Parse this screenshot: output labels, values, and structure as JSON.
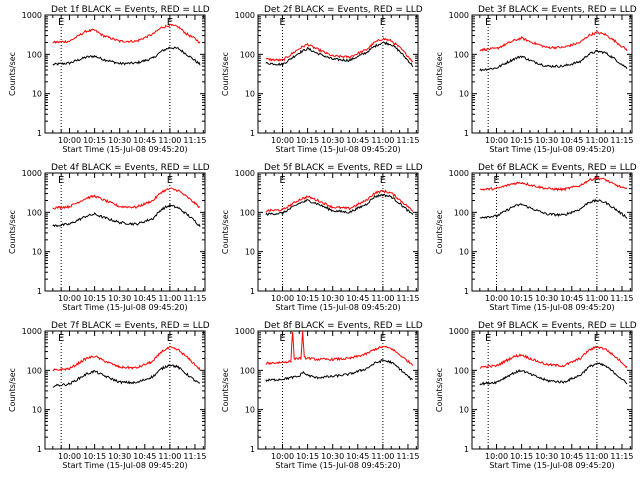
{
  "figure": {
    "colors": {
      "events": "#000000",
      "lld": "#ff0000",
      "background": "#ffffff"
    }
  },
  "chart_data": [
    {
      "type": "line",
      "title": "Det 1f BLACK = Events, RED = LLD",
      "xlabel": "Start Time (15-Jul-08 09:45:20)",
      "ylabel": "Counts/sec",
      "x_ticks": [
        "10:00",
        "10:15",
        "10:30",
        "10:45",
        "11:00",
        "11:15"
      ],
      "y_ticks": [
        "1",
        "10",
        "100",
        "1000"
      ],
      "ylim": [
        1,
        1000
      ],
      "y_scale": "log",
      "markers": [
        "E",
        "E"
      ],
      "marker_times": [
        "09:55",
        "11:00"
      ],
      "series": [
        {
          "name": "Events",
          "color": "#000000",
          "x": [
            "09:50",
            "10:00",
            "10:10",
            "10:15",
            "10:20",
            "10:30",
            "10:40",
            "10:50",
            "10:55",
            "11:00",
            "11:05",
            "11:10",
            "11:15",
            "11:18"
          ],
          "values": [
            55,
            60,
            85,
            90,
            75,
            58,
            60,
            80,
            120,
            150,
            140,
            100,
            70,
            55
          ]
        },
        {
          "name": "LLD",
          "color": "#ff0000",
          "x": [
            "09:50",
            "10:00",
            "10:10",
            "10:15",
            "10:20",
            "10:30",
            "10:40",
            "10:50",
            "10:55",
            "11:00",
            "11:05",
            "11:10",
            "11:15",
            "11:18"
          ],
          "values": [
            200,
            215,
            390,
            410,
            300,
            215,
            215,
            330,
            480,
            550,
            500,
            330,
            250,
            200
          ]
        }
      ]
    },
    {
      "type": "line",
      "title": "Det 2f BLACK = Events, RED = LLD",
      "xlabel": "Start Time (15-Jul-08 09:45:20)",
      "ylabel": "Counts/sec",
      "x_ticks": [
        "10:00",
        "10:15",
        "10:30",
        "10:45",
        "11:00",
        "11:15"
      ],
      "y_ticks": [
        "1",
        "10",
        "100",
        "1000"
      ],
      "ylim": [
        1,
        1000
      ],
      "y_scale": "log",
      "markers": [
        "E",
        "E"
      ],
      "marker_times": [
        "10:00",
        "11:00"
      ],
      "series": [
        {
          "name": "Events",
          "color": "#000000",
          "x": [
            "09:50",
            "10:00",
            "10:10",
            "10:15",
            "10:20",
            "10:30",
            "10:40",
            "10:50",
            "10:55",
            "11:00",
            "11:05",
            "11:10",
            "11:15",
            "11:18"
          ],
          "values": [
            60,
            55,
            110,
            140,
            110,
            75,
            70,
            110,
            160,
            200,
            180,
            120,
            70,
            50
          ]
        },
        {
          "name": "LLD",
          "color": "#ff0000",
          "x": [
            "09:50",
            "10:00",
            "10:10",
            "10:15",
            "10:20",
            "10:30",
            "10:40",
            "10:50",
            "10:55",
            "11:00",
            "11:05",
            "11:10",
            "11:15",
            "11:18"
          ],
          "values": [
            75,
            70,
            140,
            180,
            140,
            90,
            85,
            130,
            200,
            250,
            220,
            150,
            90,
            65
          ]
        }
      ]
    },
    {
      "type": "line",
      "title": "Det 3f BLACK = Events, RED = LLD",
      "xlabel": "Start Time (15-Jul-08 09:45:20)",
      "ylabel": "Counts/sec",
      "x_ticks": [
        "10:00",
        "10:15",
        "10:30",
        "10:45",
        "11:00",
        "11:15"
      ],
      "y_ticks": [
        "1",
        "10",
        "100",
        "1000"
      ],
      "ylim": [
        1,
        1000
      ],
      "y_scale": "log",
      "markers": [
        "E",
        "E"
      ],
      "marker_times": [
        "09:55",
        "11:00"
      ],
      "series": [
        {
          "name": "Events",
          "color": "#000000",
          "x": [
            "09:50",
            "10:00",
            "10:10",
            "10:15",
            "10:20",
            "10:30",
            "10:40",
            "10:50",
            "10:55",
            "11:00",
            "11:05",
            "11:10",
            "11:15",
            "11:18"
          ],
          "values": [
            40,
            45,
            75,
            90,
            70,
            50,
            50,
            65,
            100,
            120,
            110,
            80,
            55,
            45
          ]
        },
        {
          "name": "LLD",
          "color": "#ff0000",
          "x": [
            "09:50",
            "10:00",
            "10:10",
            "10:15",
            "10:20",
            "10:30",
            "10:40",
            "10:50",
            "10:55",
            "11:00",
            "11:05",
            "11:10",
            "11:15",
            "11:18"
          ],
          "values": [
            130,
            140,
            220,
            260,
            210,
            150,
            150,
            200,
            300,
            360,
            320,
            230,
            160,
            130
          ]
        }
      ]
    },
    {
      "type": "line",
      "title": "Det 4f BLACK = Events, RED = LLD",
      "xlabel": "Start Time (15-Jul-08 09:45:20)",
      "ylabel": "Counts/sec",
      "x_ticks": [
        "10:00",
        "10:15",
        "10:30",
        "10:45",
        "11:00",
        "11:15"
      ],
      "y_ticks": [
        "1",
        "10",
        "100",
        "1000"
      ],
      "ylim": [
        1,
        1000
      ],
      "y_scale": "log",
      "markers": [
        "E",
        "E"
      ],
      "marker_times": [
        "09:55",
        "11:00"
      ],
      "series": [
        {
          "name": "Events",
          "color": "#000000",
          "x": [
            "09:50",
            "10:00",
            "10:10",
            "10:15",
            "10:20",
            "10:30",
            "10:40",
            "10:50",
            "10:55",
            "11:00",
            "11:05",
            "11:10",
            "11:15",
            "11:18"
          ],
          "values": [
            45,
            50,
            80,
            90,
            75,
            55,
            50,
            70,
            120,
            150,
            130,
            90,
            60,
            45
          ]
        },
        {
          "name": "LLD",
          "color": "#ff0000",
          "x": [
            "09:50",
            "10:00",
            "10:10",
            "10:15",
            "10:20",
            "10:30",
            "10:40",
            "10:50",
            "10:55",
            "11:00",
            "11:05",
            "11:10",
            "11:15",
            "11:18"
          ],
          "values": [
            130,
            140,
            230,
            260,
            210,
            140,
            135,
            200,
            330,
            400,
            360,
            250,
            170,
            130
          ]
        }
      ]
    },
    {
      "type": "line",
      "title": "Det 5f BLACK = Events, RED = LLD",
      "xlabel": "Start Time (15-Jul-08 09:45:20)",
      "ylabel": "Counts/sec",
      "x_ticks": [
        "10:00",
        "10:15",
        "10:30",
        "10:45",
        "11:00",
        "11:15"
      ],
      "y_ticks": [
        "1",
        "10",
        "100",
        "1000"
      ],
      "ylim": [
        1,
        1000
      ],
      "y_scale": "log",
      "markers": [
        "E",
        "E"
      ],
      "marker_times": [
        "10:00",
        "11:00"
      ],
      "series": [
        {
          "name": "Events",
          "color": "#000000",
          "x": [
            "09:50",
            "10:00",
            "10:10",
            "10:15",
            "10:20",
            "10:30",
            "10:40",
            "10:50",
            "10:55",
            "11:00",
            "11:05",
            "11:10",
            "11:15",
            "11:18"
          ],
          "values": [
            90,
            95,
            170,
            200,
            170,
            110,
            100,
            160,
            250,
            280,
            250,
            170,
            110,
            85
          ]
        },
        {
          "name": "LLD",
          "color": "#ff0000",
          "x": [
            "09:50",
            "10:00",
            "10:10",
            "10:15",
            "10:20",
            "10:30",
            "10:40",
            "10:50",
            "10:55",
            "11:00",
            "11:05",
            "11:10",
            "11:15",
            "11:18"
          ],
          "values": [
            110,
            115,
            210,
            250,
            210,
            135,
            125,
            200,
            310,
            350,
            310,
            210,
            140,
            105
          ]
        }
      ]
    },
    {
      "type": "line",
      "title": "Det 6f BLACK = Events, RED = LLD",
      "xlabel": "Start Time (15-Jul-08 09:45:20)",
      "ylabel": "Counts/sec",
      "x_ticks": [
        "10:00",
        "10:15",
        "10:30",
        "10:45",
        "11:00",
        "11:15"
      ],
      "y_ticks": [
        "1",
        "10",
        "100",
        "1000"
      ],
      "ylim": [
        1,
        1000
      ],
      "y_scale": "log",
      "markers": [
        "E",
        "E"
      ],
      "marker_times": [
        "10:00",
        "11:00"
      ],
      "series": [
        {
          "name": "Events",
          "color": "#000000",
          "x": [
            "09:50",
            "10:00",
            "10:10",
            "10:15",
            "10:20",
            "10:30",
            "10:40",
            "10:50",
            "10:55",
            "11:00",
            "11:05",
            "11:10",
            "11:15",
            "11:18"
          ],
          "values": [
            75,
            80,
            140,
            160,
            130,
            90,
            85,
            120,
            180,
            200,
            180,
            130,
            90,
            75
          ]
        },
        {
          "name": "LLD",
          "color": "#ff0000",
          "x": [
            "09:50",
            "10:00",
            "10:10",
            "10:15",
            "10:20",
            "10:30",
            "10:40",
            "10:50",
            "10:55",
            "11:00",
            "11:05",
            "11:10",
            "11:15",
            "11:18"
          ],
          "values": [
            380,
            400,
            540,
            570,
            500,
            400,
            380,
            480,
            650,
            750,
            680,
            520,
            430,
            380
          ]
        }
      ]
    },
    {
      "type": "line",
      "title": "Det 7f BLACK = Events, RED = LLD",
      "xlabel": "Start Time (15-Jul-08 09:45:20)",
      "ylabel": "Counts/sec",
      "x_ticks": [
        "10:00",
        "10:15",
        "10:30",
        "10:45",
        "11:00",
        "11:15"
      ],
      "y_ticks": [
        "1",
        "10",
        "100",
        "1000"
      ],
      "ylim": [
        1,
        1000
      ],
      "y_scale": "log",
      "markers": [
        "E",
        "E"
      ],
      "marker_times": [
        "09:55",
        "11:00"
      ],
      "series": [
        {
          "name": "Events",
          "color": "#000000",
          "x": [
            "09:50",
            "10:00",
            "10:10",
            "10:15",
            "10:20",
            "10:30",
            "10:40",
            "10:50",
            "10:55",
            "11:00",
            "11:05",
            "11:10",
            "11:15",
            "11:18"
          ],
          "values": [
            40,
            45,
            80,
            95,
            75,
            50,
            48,
            70,
            110,
            140,
            120,
            80,
            55,
            45
          ]
        },
        {
          "name": "LLD",
          "color": "#ff0000",
          "x": [
            "09:50",
            "10:00",
            "10:10",
            "10:15",
            "10:20",
            "10:30",
            "10:40",
            "10:50",
            "10:55",
            "11:00",
            "11:05",
            "11:10",
            "11:15",
            "11:18"
          ],
          "values": [
            100,
            110,
            200,
            230,
            180,
            120,
            115,
            170,
            300,
            380,
            330,
            220,
            140,
            105
          ]
        }
      ]
    },
    {
      "type": "line",
      "title": "Det 8f BLACK = Events, RED = LLD",
      "xlabel": "Start Time (15-Jul-08 09:45:20)",
      "ylabel": "Counts/sec",
      "x_ticks": [
        "10:00",
        "10:15",
        "10:30",
        "10:45",
        "11:00",
        "11:15"
      ],
      "y_ticks": [
        "1",
        "10",
        "100",
        "1000"
      ],
      "ylim": [
        1,
        1000
      ],
      "y_scale": "log",
      "markers": [
        "E",
        "E"
      ],
      "marker_times": [
        "10:00",
        "11:00"
      ],
      "series": [
        {
          "name": "Events",
          "color": "#000000",
          "x": [
            "09:50",
            "10:00",
            "10:05",
            "10:10",
            "10:12",
            "10:15",
            "10:20",
            "10:30",
            "10:40",
            "10:50",
            "10:55",
            "11:00",
            "11:05",
            "11:10",
            "11:15",
            "11:18"
          ],
          "values": [
            55,
            60,
            65,
            70,
            90,
            75,
            65,
            70,
            80,
            110,
            150,
            180,
            160,
            110,
            70,
            55
          ]
        },
        {
          "name": "LLD",
          "color": "#ff0000",
          "x": [
            "09:50",
            "10:00",
            "10:05",
            "10:06",
            "10:07",
            "10:11",
            "10:12",
            "10:13",
            "10:20",
            "10:30",
            "10:40",
            "10:50",
            "10:55",
            "11:00",
            "11:05",
            "11:10",
            "11:15",
            "11:18"
          ],
          "values": [
            150,
            160,
            170,
            1000,
            200,
            200,
            1000,
            210,
            190,
            190,
            200,
            260,
            340,
            400,
            360,
            250,
            170,
            140
          ]
        }
      ]
    },
    {
      "type": "line",
      "title": "Det 9f BLACK = Events, RED = LLD",
      "xlabel": "Start Time (15-Jul-08 09:45:20)",
      "ylabel": "Counts/sec",
      "x_ticks": [
        "10:00",
        "10:15",
        "10:30",
        "10:45",
        "11:00",
        "11:15"
      ],
      "y_ticks": [
        "1",
        "10",
        "100",
        "1000"
      ],
      "ylim": [
        1,
        1000
      ],
      "y_scale": "log",
      "markers": [
        "E",
        "E"
      ],
      "marker_times": [
        "09:55",
        "11:00"
      ],
      "series": [
        {
          "name": "Events",
          "color": "#000000",
          "x": [
            "09:50",
            "10:00",
            "10:10",
            "10:15",
            "10:20",
            "10:30",
            "10:40",
            "10:50",
            "10:55",
            "11:00",
            "11:05",
            "11:10",
            "11:15",
            "11:18"
          ],
          "values": [
            45,
            50,
            85,
            100,
            80,
            55,
            50,
            75,
            120,
            150,
            130,
            90,
            60,
            45
          ]
        },
        {
          "name": "LLD",
          "color": "#ff0000",
          "x": [
            "09:50",
            "10:00",
            "10:10",
            "10:15",
            "10:20",
            "10:30",
            "10:40",
            "10:50",
            "10:55",
            "11:00",
            "11:05",
            "11:10",
            "11:15",
            "11:18"
          ],
          "values": [
            120,
            130,
            220,
            250,
            200,
            140,
            130,
            200,
            320,
            400,
            350,
            240,
            160,
            120
          ]
        }
      ]
    }
  ]
}
